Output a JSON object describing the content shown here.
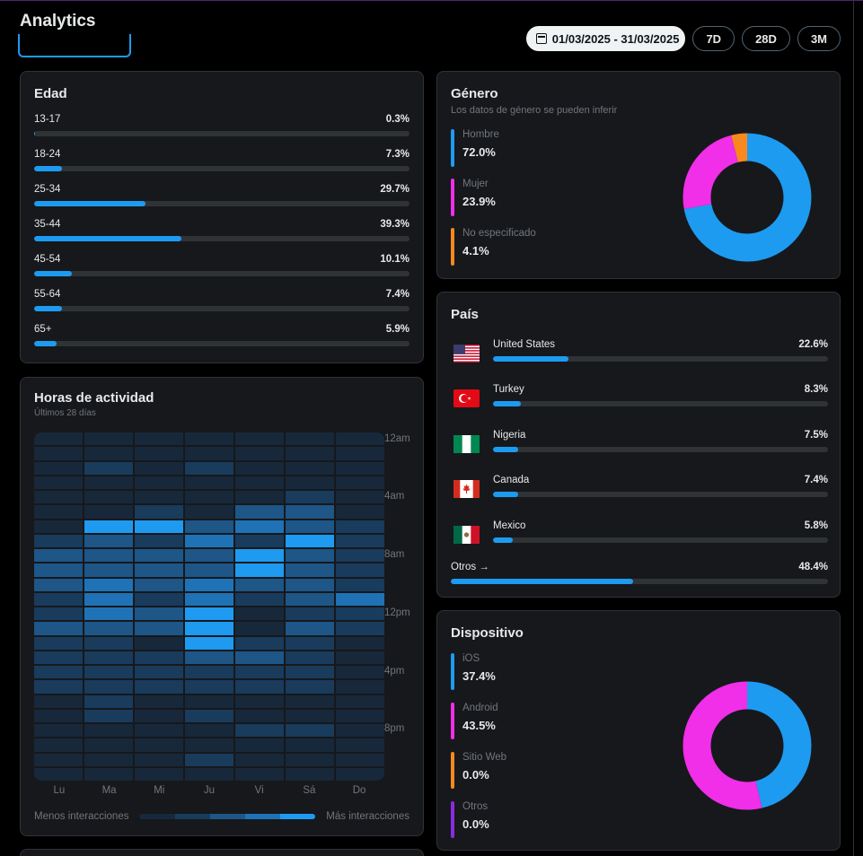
{
  "header": {
    "title": "Analytics",
    "date_range": "01/03/2025 - 31/03/2025",
    "range_buttons": [
      "7D",
      "28D",
      "3M"
    ]
  },
  "edad": {
    "title": "Edad",
    "rows": [
      {
        "label": "13-17",
        "pct": "0.3%",
        "value": 0.3
      },
      {
        "label": "18-24",
        "pct": "7.3%",
        "value": 7.3
      },
      {
        "label": "25-34",
        "pct": "29.7%",
        "value": 29.7
      },
      {
        "label": "35-44",
        "pct": "39.3%",
        "value": 39.3
      },
      {
        "label": "45-54",
        "pct": "10.1%",
        "value": 10.1
      },
      {
        "label": "55-64",
        "pct": "7.4%",
        "value": 7.4
      },
      {
        "label": "65+",
        "pct": "5.9%",
        "value": 5.9
      }
    ]
  },
  "horas": {
    "title": "Horas de actividad",
    "subtitle": "Últimos 28 días",
    "hour_labels": [
      "12am",
      "4am",
      "8am",
      "12pm",
      "4pm",
      "8pm"
    ],
    "day_labels": [
      "Lu",
      "Ma",
      "Mi",
      "Ju",
      "Vi",
      "Sá",
      "Do"
    ],
    "legend_low": "Menos interacciones",
    "legend_high": "Más interacciones",
    "levels_by_hour": [
      [
        1,
        1,
        1,
        1,
        1,
        1,
        1
      ],
      [
        1,
        1,
        1,
        1,
        1,
        1,
        1
      ],
      [
        1,
        2,
        1,
        2,
        1,
        1,
        1
      ],
      [
        1,
        1,
        1,
        1,
        1,
        1,
        1
      ],
      [
        1,
        1,
        1,
        1,
        1,
        2,
        1
      ],
      [
        1,
        1,
        2,
        1,
        3,
        3,
        1
      ],
      [
        1,
        5,
        5,
        3,
        4,
        3,
        2
      ],
      [
        2,
        3,
        2,
        4,
        2,
        5,
        2
      ],
      [
        3,
        3,
        3,
        3,
        5,
        3,
        2
      ],
      [
        3,
        3,
        3,
        3,
        5,
        3,
        2
      ],
      [
        3,
        4,
        3,
        4,
        3,
        3,
        2
      ],
      [
        2,
        4,
        2,
        4,
        2,
        3,
        4
      ],
      [
        2,
        4,
        3,
        5,
        1,
        2,
        2
      ],
      [
        3,
        3,
        3,
        5,
        1,
        3,
        2
      ],
      [
        2,
        2,
        1,
        5,
        2,
        2,
        1
      ],
      [
        2,
        2,
        2,
        3,
        3,
        2,
        1
      ],
      [
        2,
        2,
        2,
        2,
        2,
        2,
        1
      ],
      [
        2,
        2,
        2,
        2,
        2,
        2,
        1
      ],
      [
        1,
        2,
        1,
        1,
        1,
        1,
        1
      ],
      [
        1,
        2,
        1,
        2,
        1,
        1,
        1
      ],
      [
        1,
        1,
        1,
        1,
        2,
        2,
        1
      ],
      [
        1,
        1,
        1,
        1,
        1,
        1,
        1
      ],
      [
        1,
        1,
        1,
        2,
        1,
        1,
        1
      ],
      [
        1,
        1,
        1,
        1,
        1,
        1,
        1
      ]
    ],
    "level_colors": [
      "#17283a",
      "#193b5c",
      "#1d5687",
      "#1f72b5",
      "#1e9af0"
    ]
  },
  "genero": {
    "title": "Género",
    "subtitle": "Los datos de género se pueden inferir",
    "items": [
      {
        "label": "Hombre",
        "pct": "72.0%",
        "value": 72.0,
        "color": "#1d9bf0"
      },
      {
        "label": "Mujer",
        "pct": "23.9%",
        "value": 23.9,
        "color": "#f12ee8"
      },
      {
        "label": "No especificado",
        "pct": "4.1%",
        "value": 4.1,
        "color": "#f7891e"
      }
    ]
  },
  "pais": {
    "title": "País",
    "items": [
      {
        "label": "United States",
        "pct": "22.6%",
        "value": 22.6,
        "flag": "us-flag-icon"
      },
      {
        "label": "Turkey",
        "pct": "8.3%",
        "value": 8.3,
        "flag": "turkey-flag-icon"
      },
      {
        "label": "Nigeria",
        "pct": "7.5%",
        "value": 7.5,
        "flag": "nigeria-flag-icon"
      },
      {
        "label": "Canada",
        "pct": "7.4%",
        "value": 7.4,
        "flag": "canada-flag-icon"
      },
      {
        "label": "Mexico",
        "pct": "5.8%",
        "value": 5.8,
        "flag": "mexico-flag-icon"
      }
    ],
    "otros": {
      "label": "Otros →",
      "pct": "48.4%",
      "value": 48.4
    }
  },
  "dispositivo": {
    "title": "Dispositivo",
    "items": [
      {
        "label": "iOS",
        "pct": "37.4%",
        "value": 37.4,
        "color": "#1d9bf0"
      },
      {
        "label": "Android",
        "pct": "43.5%",
        "value": 43.5,
        "color": "#f12ee8"
      },
      {
        "label": "Sitio Web",
        "pct": "0.0%",
        "value": 0.0,
        "color": "#f7891e"
      },
      {
        "label": "Otros",
        "pct": "0.0%",
        "value": 0.0,
        "color": "#8a2be2"
      }
    ]
  }
}
